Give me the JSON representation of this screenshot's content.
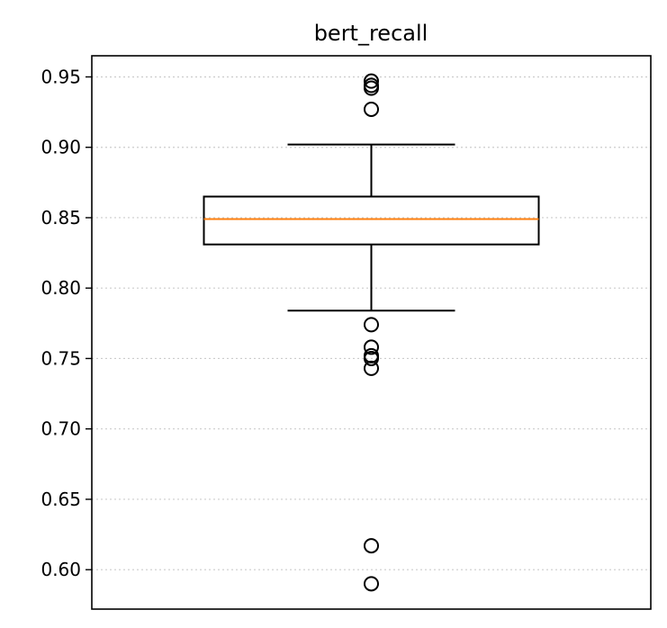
{
  "chart_data": {
    "type": "box",
    "title": "bert_recall",
    "xlabel": "",
    "ylabel": "",
    "ylim": [
      0.572,
      0.965
    ],
    "yticks": [
      0.6,
      0.65,
      0.7,
      0.75,
      0.8,
      0.85,
      0.9,
      0.95
    ],
    "ytick_labels": [
      "0.60",
      "0.65",
      "0.70",
      "0.75",
      "0.80",
      "0.85",
      "0.90",
      "0.95"
    ],
    "grid": "y, dotted",
    "box": {
      "whisker_low": 0.784,
      "q1": 0.831,
      "median": 0.849,
      "q3": 0.865,
      "whisker_high": 0.902
    },
    "outliers": [
      0.947,
      0.944,
      0.942,
      0.927,
      0.774,
      0.758,
      0.752,
      0.75,
      0.743,
      0.617,
      0.59
    ],
    "colors": {
      "box": "#000000",
      "median": "#ff7f0e",
      "grid": "#cccccc"
    }
  }
}
